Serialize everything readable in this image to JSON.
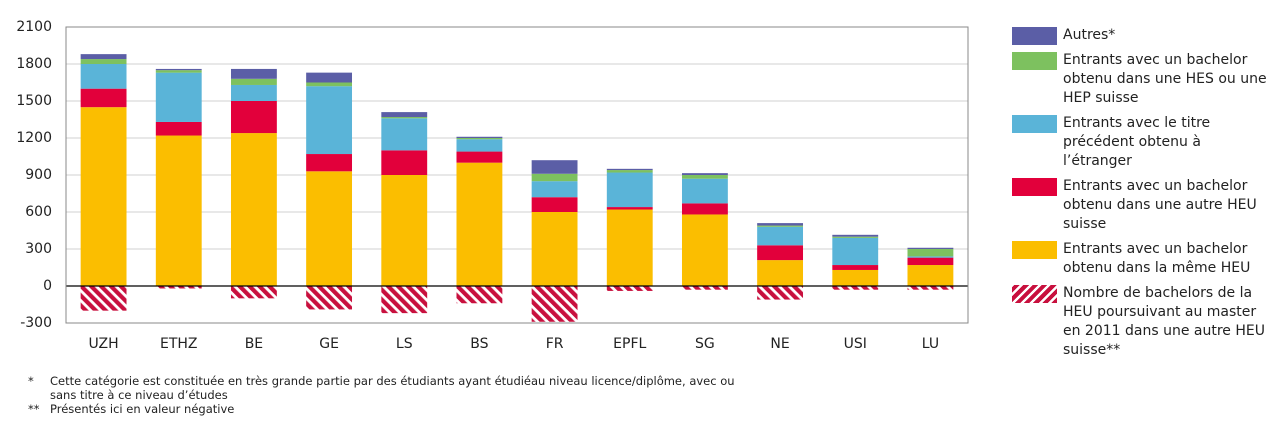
{
  "chart_data": {
    "type": "bar",
    "stacked": true,
    "categories": [
      "UZH",
      "ETHZ",
      "BE",
      "GE",
      "LS",
      "BS",
      "FR",
      "EPFL",
      "SG",
      "NE",
      "USI",
      "LU"
    ],
    "series": [
      {
        "name": "Autres*",
        "color": "#5b5ea6",
        "values": [
          40,
          10,
          80,
          80,
          40,
          10,
          110,
          10,
          15,
          20,
          15,
          10
        ]
      },
      {
        "name": "Entrants avec un bachelor obtenu dans une HES ou une HEP suisse",
        "color": "#7dc15f",
        "values": [
          40,
          20,
          50,
          30,
          10,
          10,
          60,
          20,
          30,
          10,
          10,
          60
        ]
      },
      {
        "name": "Entrants avec le titre précédent obtenu à l’étranger",
        "color": "#5ab4d8",
        "values": [
          200,
          400,
          130,
          550,
          260,
          100,
          130,
          280,
          200,
          150,
          220,
          10
        ]
      },
      {
        "name": "Entrants avec un bachelor obtenu dans une autre HEU suisse",
        "color": "#e2003b",
        "values": [
          150,
          110,
          260,
          140,
          200,
          90,
          120,
          20,
          90,
          120,
          40,
          60
        ]
      },
      {
        "name": "Entrants avec un bachelor obtenu dans la même HEU",
        "color": "#fbbe00",
        "values": [
          1450,
          1220,
          1240,
          930,
          900,
          1000,
          600,
          620,
          580,
          210,
          130,
          170
        ]
      },
      {
        "name": "Nombre de bachelors de la HEU poursuivant au master en 2011 dans une autre HEU suisse**",
        "color": "#c8103e",
        "pattern": "hatch",
        "values": [
          -200,
          -20,
          -100,
          -190,
          -220,
          -140,
          -290,
          -40,
          -30,
          -110,
          -30,
          -30
        ]
      }
    ],
    "ylim": [
      -300,
      2100
    ],
    "yticks": [
      -300,
      0,
      300,
      600,
      900,
      1200,
      1500,
      1800,
      2100
    ],
    "grid": true,
    "legend": "right",
    "notes": [
      {
        "marker": "*",
        "text": "Cette catégorie est constituée en très grande partie par des étudiants ayant étudiéau niveau licence/diplôme, avec ou sans titre à ce niveau d’études"
      },
      {
        "marker": "**",
        "text": "Présentés ici en valeur négative"
      }
    ]
  }
}
